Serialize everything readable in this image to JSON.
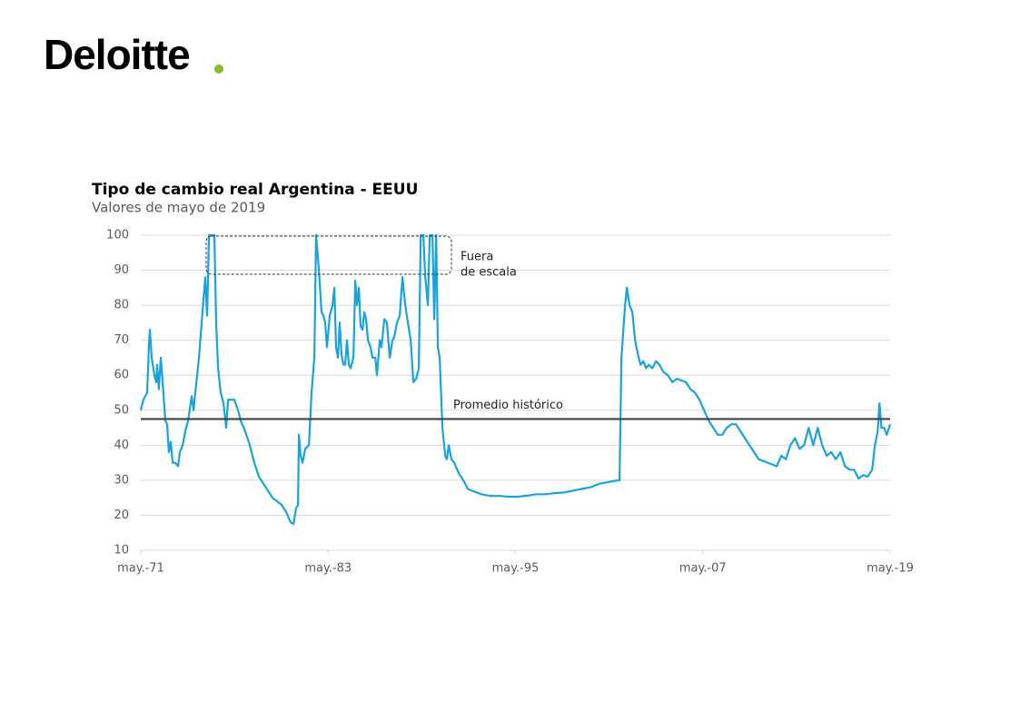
{
  "logo": "Deloitte",
  "chart_data": {
    "type": "line",
    "title": "Tipo de cambio real Argentina - EEUU",
    "subtitle": "Valores de mayo de 2019",
    "annotation": [
      "Fuera",
      "de escala"
    ],
    "reference_line": {
      "label": "Promedio histórico",
      "value": 47.5,
      "color": "#404040"
    },
    "xlim": [
      1971.33,
      2019.33
    ],
    "xticks": [
      {
        "value": 1971.33,
        "label": "may.-71"
      },
      {
        "value": 1983.33,
        "label": "may.-83"
      },
      {
        "value": 1995.33,
        "label": "may.-95"
      },
      {
        "value": 2007.33,
        "label": "may.-07"
      },
      {
        "value": 2019.33,
        "label": "may.-19"
      }
    ],
    "ylim": [
      10,
      100
    ],
    "yticks": [
      10,
      20,
      30,
      40,
      50,
      60,
      70,
      80,
      90,
      100
    ],
    "grid": true,
    "x": [
      1971.33,
      1971.5,
      1971.74,
      1971.85,
      1971.91,
      1972.03,
      1972.2,
      1972.32,
      1972.38,
      1972.49,
      1972.61,
      1972.73,
      1972.9,
      1973.02,
      1973.13,
      1973.25,
      1973.37,
      1973.54,
      1973.72,
      1973.83,
      1974.01,
      1974.18,
      1974.36,
      1974.59,
      1974.71,
      1974.82,
      1975.06,
      1975.23,
      1975.46,
      1975.58,
      1975.7,
      1975.87,
      1976.04,
      1976.16,
      1976.28,
      1976.45,
      1976.63,
      1976.8,
      1976.92,
      1977.15,
      1977.32,
      1977.56,
      1977.73,
      1978.02,
      1978.31,
      1978.6,
      1978.9,
      1979.19,
      1979.48,
      1979.77,
      1980.06,
      1980.35,
      1980.64,
      1980.93,
      1981.11,
      1981.28,
      1981.4,
      1981.46,
      1981.57,
      1981.69,
      1981.86,
      1982.1,
      1982.27,
      1982.45,
      1982.56,
      1982.74,
      1982.91,
      1983.03,
      1983.14,
      1983.26,
      1983.43,
      1983.61,
      1983.73,
      1983.84,
      1983.96,
      1984.07,
      1984.19,
      1984.31,
      1984.42,
      1984.54,
      1984.66,
      1984.77,
      1984.95,
      1985.07,
      1985.18,
      1985.3,
      1985.41,
      1985.53,
      1985.65,
      1985.76,
      1985.88,
      1986.05,
      1986.17,
      1986.35,
      1986.46,
      1986.64,
      1986.75,
      1986.93,
      1987.1,
      1987.28,
      1987.45,
      1987.57,
      1987.74,
      1987.92,
      1988.09,
      1988.27,
      1988.44,
      1988.62,
      1988.79,
      1988.97,
      1989.14,
      1989.26,
      1989.43,
      1989.55,
      1989.72,
      1989.84,
      1990.01,
      1990.13,
      1990.25,
      1990.36,
      1990.48,
      1990.65,
      1990.83,
      1990.94,
      1991.06,
      1991.23,
      1991.41,
      1991.7,
      1991.99,
      1992.28,
      1992.57,
      1993.15,
      1993.74,
      1994.32,
      1994.9,
      1995.48,
      1996.07,
      1996.65,
      1997.23,
      1997.81,
      1998.4,
      1998.98,
      1999.56,
      2000.14,
      2000.72,
      2001.31,
      2001.89,
      2002.0,
      2002.12,
      2002.24,
      2002.35,
      2002.47,
      2002.64,
      2002.82,
      2002.99,
      2003.17,
      2003.34,
      2003.52,
      2003.69,
      2003.87,
      2004.1,
      2004.33,
      2004.56,
      2004.8,
      2005.09,
      2005.38,
      2005.67,
      2005.96,
      2006.25,
      2006.54,
      2006.83,
      2007.12,
      2007.41,
      2007.71,
      2008.0,
      2008.29,
      2008.58,
      2008.87,
      2009.16,
      2009.45,
      2009.74,
      2010.03,
      2010.32,
      2010.62,
      2010.91,
      2011.2,
      2011.49,
      2011.78,
      2012.07,
      2012.36,
      2012.65,
      2012.94,
      2013.24,
      2013.53,
      2013.82,
      2014.11,
      2014.4,
      2014.69,
      2014.98,
      2015.27,
      2015.56,
      2015.85,
      2016.15,
      2016.44,
      2016.73,
      2017.02,
      2017.31,
      2017.6,
      2017.89,
      2018.18,
      2018.36,
      2018.53,
      2018.65,
      2018.77,
      2018.94,
      2019.12,
      2019.33
    ],
    "series": [
      {
        "name": "Tipo de cambio real",
        "color": "#19a3dd",
        "values": [
          50,
          53,
          55,
          68,
          73,
          65,
          60,
          58,
          63,
          56,
          65,
          58,
          47,
          46,
          38,
          41,
          35,
          35,
          34,
          38,
          40,
          44,
          47,
          54,
          50,
          55,
          65,
          75,
          88,
          77,
          100,
          100,
          100,
          75,
          62,
          55,
          52,
          45,
          53,
          53,
          53,
          50,
          47,
          44,
          40,
          35,
          31,
          29,
          27,
          25,
          24,
          23,
          21,
          18,
          17.5,
          22,
          23,
          43,
          37,
          35,
          39,
          40,
          55,
          65,
          100,
          90,
          78,
          77,
          75,
          68,
          77,
          80,
          85,
          68,
          65,
          75,
          66,
          63,
          63,
          70,
          63,
          62,
          65,
          87,
          80,
          85,
          74,
          73,
          78,
          76,
          70,
          68,
          65,
          65,
          60,
          70,
          68,
          76,
          75,
          65,
          70,
          71,
          75,
          77,
          88,
          80,
          75,
          70,
          58,
          59,
          62,
          100,
          100,
          88,
          80,
          100,
          100,
          76,
          100,
          68,
          65,
          45,
          37,
          36,
          40,
          36,
          35,
          32,
          30,
          27.5,
          27,
          26,
          25.5,
          25.5,
          25.3,
          25.3,
          25.6,
          26,
          26,
          26.3,
          26.5,
          27,
          27.5,
          28,
          29,
          29.5,
          30,
          30,
          65,
          73,
          80,
          85,
          80,
          78,
          70,
          66,
          63,
          64,
          62,
          63,
          62,
          64,
          63,
          61,
          60,
          58,
          59,
          58.5,
          58,
          56,
          55,
          53,
          50,
          47,
          45,
          43,
          43,
          45,
          46,
          46,
          44,
          42,
          40,
          38,
          36,
          35.5,
          35,
          34.5,
          34,
          37,
          36,
          40,
          42,
          39,
          40,
          45,
          40,
          45,
          40,
          37,
          38,
          36,
          38,
          34,
          33,
          33,
          30.5,
          31.5,
          31,
          33,
          40,
          44,
          52,
          45,
          45,
          43,
          46
        ]
      }
    ]
  }
}
